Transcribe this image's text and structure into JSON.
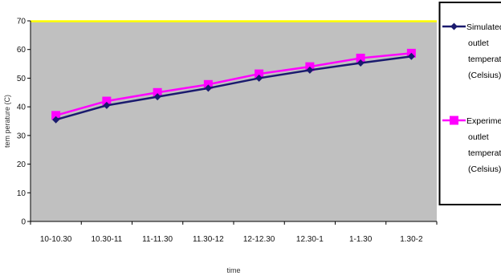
{
  "chart_data": {
    "type": "line",
    "title": "",
    "xlabel": "time",
    "ylabel": "tem perature (C)",
    "ylim": [
      0,
      70
    ],
    "yticks": [
      0,
      10,
      20,
      30,
      40,
      50,
      60,
      70
    ],
    "categories": [
      "10-10.30",
      "10.30-11",
      "11-11.30",
      "11.30-12",
      "12-12.30",
      "12.30-1",
      "1-1.30",
      "1.30-2"
    ],
    "grid": false,
    "legend_position": "right",
    "series": [
      {
        "name": "Simulated outlet temperature (Celsius)",
        "legend_lines": [
          "Simulated",
          "outlet",
          "temperature",
          "(Celsius)"
        ],
        "values": [
          35.5,
          40.5,
          43.5,
          46.5,
          50.0,
          52.8,
          55.3,
          57.6
        ],
        "color": "#1a1a6e",
        "marker": "diamond"
      },
      {
        "name": "Experimental outlet temperature (Celsius)",
        "legend_lines": [
          "Experimental",
          "outlet",
          "temperature",
          "(Celsius)"
        ],
        "values": [
          37.0,
          42.0,
          45.0,
          47.8,
          51.5,
          54.0,
          57.0,
          58.7
        ],
        "color": "#ff00ff",
        "marker": "square"
      }
    ],
    "plot_background": "#c0c0c0",
    "plot_top_border": "#ffff00"
  }
}
